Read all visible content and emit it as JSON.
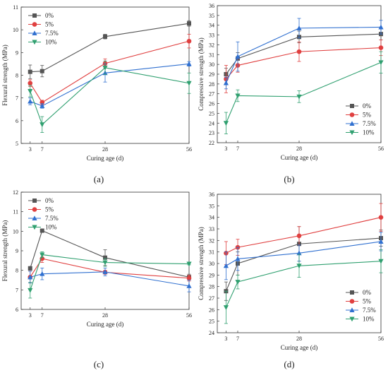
{
  "chart_data": [
    {
      "type": "line",
      "panel_label": "(a)",
      "xlabel": "Curing age (d)",
      "ylabel": "Flexural strength (MPa)",
      "x": [
        3,
        7,
        28,
        56
      ],
      "xticks": [
        "3",
        "7",
        "28",
        "56"
      ],
      "xlim": [
        0,
        56
      ],
      "ylim": [
        5,
        11
      ],
      "yticks": [
        "5",
        "6",
        "7",
        "8",
        "9",
        "10",
        "11"
      ],
      "legend_position": "top-left",
      "series": [
        {
          "name": "0%",
          "color": "#555555",
          "marker": "square",
          "values": [
            8.15,
            8.18,
            9.7,
            10.28
          ],
          "errors": [
            0.3,
            0.25,
            0.1,
            0.12
          ]
        },
        {
          "name": "5%",
          "color": "#e04040",
          "marker": "circle",
          "values": [
            7.65,
            6.8,
            8.52,
            9.5
          ],
          "errors": [
            0.15,
            0.1,
            0.2,
            0.3
          ]
        },
        {
          "name": "7.5%",
          "color": "#3070d0",
          "marker": "triangle-up",
          "values": [
            6.85,
            6.65,
            8.1,
            8.5
          ],
          "errors": [
            0.15,
            0.1,
            0.4,
            0.1
          ]
        },
        {
          "name": "10%",
          "color": "#30a070",
          "marker": "triangle-down",
          "values": [
            7.3,
            5.83,
            8.33,
            7.65
          ],
          "errors": [
            0.25,
            0.35,
            0.3,
            0.45
          ]
        }
      ]
    },
    {
      "type": "line",
      "panel_label": "(b)",
      "xlabel": "Curing age (d)",
      "ylabel": "Compressive strength (MPa)",
      "x": [
        3,
        7,
        28,
        56
      ],
      "xticks": [
        "3",
        "7",
        "28",
        "56"
      ],
      "xlim": [
        0,
        56
      ],
      "ylim": [
        22,
        36
      ],
      "yticks": [
        "22",
        "23",
        "24",
        "25",
        "26",
        "27",
        "28",
        "29",
        "30",
        "31",
        "32",
        "33",
        "34",
        "35",
        "36"
      ],
      "legend_position": "bottom-right",
      "series": [
        {
          "name": "0%",
          "color": "#555555",
          "marker": "square",
          "values": [
            29.0,
            30.6,
            32.8,
            33.1
          ],
          "errors": [
            0.6,
            0.6,
            0.6,
            0.6
          ]
        },
        {
          "name": "5%",
          "color": "#e04040",
          "marker": "circle",
          "values": [
            28.5,
            29.9,
            31.3,
            31.7
          ],
          "errors": [
            1.4,
            0.7,
            1.0,
            0.8
          ]
        },
        {
          "name": "7.5%",
          "color": "#3070d0",
          "marker": "triangle-up",
          "values": [
            28.1,
            30.8,
            33.7,
            33.8
          ],
          "errors": [
            0.6,
            1.5,
            1.0,
            0.7
          ]
        },
        {
          "name": "10%",
          "color": "#30a070",
          "marker": "triangle-down",
          "values": [
            24.0,
            26.8,
            26.7,
            30.2
          ],
          "errors": [
            1.1,
            0.6,
            0.6,
            1.1
          ]
        }
      ]
    },
    {
      "type": "line",
      "panel_label": "(c)",
      "xlabel": "Curing age (d)",
      "ylabel": "Flexural strength (MPa)",
      "x": [
        3,
        7,
        28,
        56
      ],
      "xticks": [
        "3",
        "7",
        "28",
        "56"
      ],
      "xlim": [
        0,
        56
      ],
      "ylim": [
        6,
        12
      ],
      "yticks": [
        "6",
        "7",
        "8",
        "9",
        "10",
        "11",
        "12"
      ],
      "legend_position": "top-left",
      "series": [
        {
          "name": "0%",
          "color": "#555555",
          "marker": "square",
          "values": [
            8.1,
            10.03,
            8.65,
            7.65
          ],
          "errors": [
            0.1,
            0.05,
            0.4,
            0.15
          ]
        },
        {
          "name": "5%",
          "color": "#e04040",
          "marker": "circle",
          "values": [
            7.65,
            8.6,
            7.9,
            7.6
          ],
          "errors": [
            0.3,
            0.2,
            0.1,
            0.15
          ]
        },
        {
          "name": "7.5%",
          "color": "#3070d0",
          "marker": "triangle-up",
          "values": [
            7.65,
            7.82,
            7.92,
            7.2
          ],
          "errors": [
            0.3,
            0.3,
            0.2,
            0.3
          ]
        },
        {
          "name": "10%",
          "color": "#30a070",
          "marker": "triangle-down",
          "values": [
            6.98,
            8.8,
            8.4,
            8.33
          ],
          "errors": [
            0.4,
            0.15,
            0.2,
            0.05
          ]
        }
      ]
    },
    {
      "type": "line",
      "panel_label": "(d)",
      "xlabel": "Curing age (d)",
      "ylabel": "Compressive strength (MPa)",
      "x": [
        3,
        7,
        28,
        56
      ],
      "xticks": [
        "3",
        "7",
        "28",
        "56"
      ],
      "xlim": [
        0,
        56
      ],
      "ylim": [
        24,
        36
      ],
      "yticks": [
        "24",
        "25",
        "26",
        "27",
        "28",
        "29",
        "30",
        "31",
        "32",
        "33",
        "34",
        "35",
        "36"
      ],
      "legend_position": "bottom-right",
      "series": [
        {
          "name": "0%",
          "color": "#555555",
          "marker": "square",
          "values": [
            27.6,
            30.0,
            31.7,
            32.2
          ],
          "errors": [
            0.8,
            1.0,
            1.5,
            0.7
          ]
        },
        {
          "name": "5%",
          "color": "#e04040",
          "marker": "circle",
          "values": [
            30.9,
            31.4,
            32.4,
            34.0
          ],
          "errors": [
            1.0,
            0.7,
            0.8,
            1.2
          ]
        },
        {
          "name": "7.5%",
          "color": "#3070d0",
          "marker": "triangle-up",
          "values": [
            29.8,
            30.4,
            30.9,
            31.9
          ],
          "errors": [
            1.2,
            1.0,
            0.7,
            0.8
          ]
        },
        {
          "name": "10%",
          "color": "#30a070",
          "marker": "triangle-down",
          "values": [
            26.2,
            28.4,
            29.8,
            30.2
          ],
          "errors": [
            1.4,
            0.6,
            1.0,
            1.0
          ]
        }
      ]
    }
  ]
}
